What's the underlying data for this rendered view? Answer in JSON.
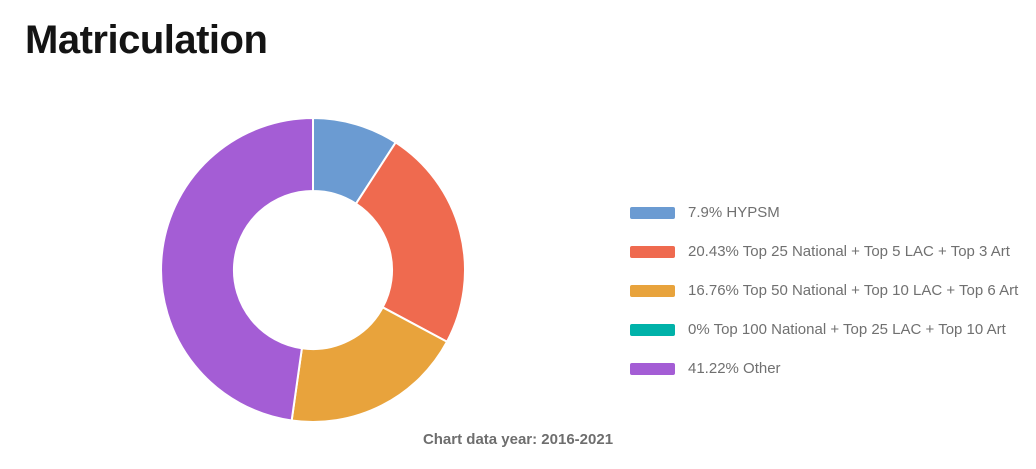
{
  "title": "Matriculation",
  "caption": "Chart data year: 2016-2021",
  "colors": {
    "background": "#ffffff",
    "title_text": "#141414",
    "legend_text": "#707070",
    "caption_text": "#6e6e6e",
    "slice_gap": "#ffffff"
  },
  "chart_data": {
    "type": "pie",
    "subtype": "donut",
    "title": "Matriculation",
    "unit": "%",
    "start_angle_deg": 0,
    "direction": "clockwise",
    "inner_radius_ratio": 0.52,
    "legend_position": "right",
    "footnote": "Chart data year: 2016-2021",
    "categories": [
      "HYPSM",
      "Top 25 National + Top 5 LAC + Top 3 Art",
      "Top 50 National + Top 10 LAC + Top 6 Art",
      "Top 100 National + Top 25 LAC + Top 10 Art",
      "Other"
    ],
    "values": [
      7.9,
      20.43,
      16.76,
      0,
      41.22
    ],
    "slices": [
      {
        "label": "HYPSM",
        "value": 7.9,
        "color": "#6b9bd2",
        "legend_text": "7.9% HYPSM"
      },
      {
        "label": "Top 25 National + Top 5 LAC + Top 3 Art",
        "value": 20.43,
        "color": "#ef6a4f",
        "legend_text": "20.43% Top 25 National + Top 5 LAC + Top 3 Art"
      },
      {
        "label": "Top 50 National + Top 10 LAC + Top 6 Art",
        "value": 16.76,
        "color": "#e8a33c",
        "legend_text": "16.76% Top 50 National + Top 10 LAC + Top 6 Art"
      },
      {
        "label": "Top 100 National + Top 25 LAC + Top 10 Art",
        "value": 0,
        "color": "#00b2a9",
        "legend_text": "0% Top 100 National + Top 25 LAC + Top 10 Art"
      },
      {
        "label": "Other",
        "value": 41.22,
        "color": "#a45dd5",
        "legend_text": "41.22% Other"
      }
    ]
  }
}
